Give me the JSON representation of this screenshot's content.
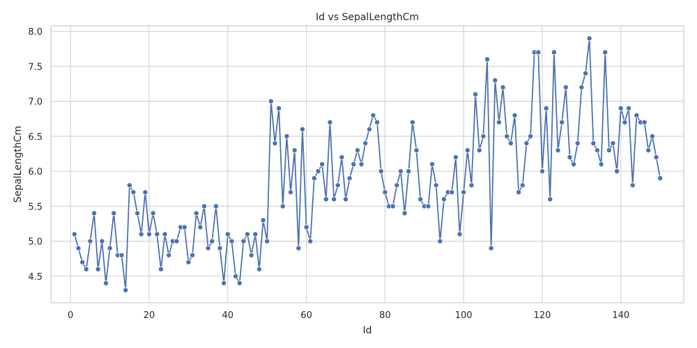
{
  "chart_data": {
    "type": "line",
    "title": "Id vs SepalLengthCm",
    "xlabel": "Id",
    "ylabel": "SepalLengthCm",
    "xlim": [
      -5,
      156
    ],
    "ylim": [
      4.12,
      8.08
    ],
    "xticks": [
      0,
      20,
      40,
      60,
      80,
      100,
      120,
      140
    ],
    "yticks": [
      4.5,
      5.0,
      5.5,
      6.0,
      6.5,
      7.0,
      7.5,
      8.0
    ],
    "ytick_labels": [
      "4.5",
      "5.0",
      "5.5",
      "6.0",
      "6.5",
      "7.0",
      "7.5",
      "8.0"
    ],
    "grid": true,
    "marker": "circle",
    "color": "#4c72b0",
    "x_start": 1,
    "y": [
      5.1,
      4.9,
      4.7,
      4.6,
      5.0,
      5.4,
      4.6,
      5.0,
      4.4,
      4.9,
      5.4,
      4.8,
      4.8,
      4.3,
      5.8,
      5.7,
      5.4,
      5.1,
      5.7,
      5.1,
      5.4,
      5.1,
      4.6,
      5.1,
      4.8,
      5.0,
      5.0,
      5.2,
      5.2,
      4.7,
      4.8,
      5.4,
      5.2,
      5.5,
      4.9,
      5.0,
      5.5,
      4.9,
      4.4,
      5.1,
      5.0,
      4.5,
      4.4,
      5.0,
      5.1,
      4.8,
      5.1,
      4.6,
      5.3,
      5.0,
      7.0,
      6.4,
      6.9,
      5.5,
      6.5,
      5.7,
      6.3,
      4.9,
      6.6,
      5.2,
      5.0,
      5.9,
      6.0,
      6.1,
      5.6,
      6.7,
      5.6,
      5.8,
      6.2,
      5.6,
      5.9,
      6.1,
      6.3,
      6.1,
      6.4,
      6.6,
      6.8,
      6.7,
      6.0,
      5.7,
      5.5,
      5.5,
      5.8,
      6.0,
      5.4,
      6.0,
      6.7,
      6.3,
      5.6,
      5.5,
      5.5,
      6.1,
      5.8,
      5.0,
      5.6,
      5.7,
      5.7,
      6.2,
      5.1,
      5.7,
      6.3,
      5.8,
      7.1,
      6.3,
      6.5,
      7.6,
      4.9,
      7.3,
      6.7,
      7.2,
      6.5,
      6.4,
      6.8,
      5.7,
      5.8,
      6.4,
      6.5,
      7.7,
      7.7,
      6.0,
      6.9,
      5.6,
      7.7,
      6.3,
      6.7,
      7.2,
      6.2,
      6.1,
      6.4,
      7.2,
      7.4,
      7.9,
      6.4,
      6.3,
      6.1,
      7.7,
      6.3,
      6.4,
      6.0,
      6.9,
      6.7,
      6.9,
      5.8,
      6.8,
      6.7,
      6.7,
      6.3,
      6.5,
      6.2,
      5.9
    ]
  }
}
